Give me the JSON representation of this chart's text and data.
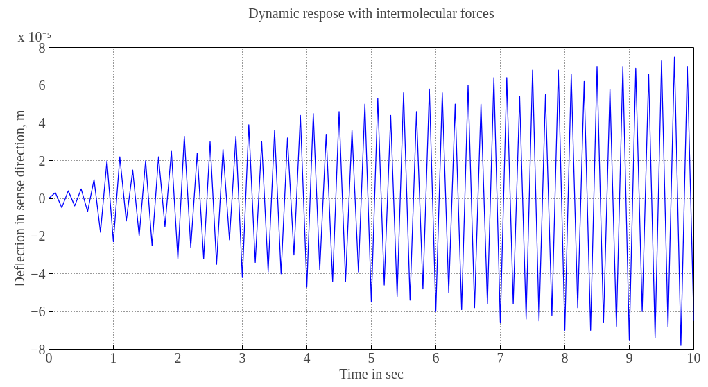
{
  "chart_data": {
    "type": "line",
    "title": "Dynamic respose with intermolecular forces",
    "xlabel": "Time in sec",
    "ylabel": "Deflection in sense direction, m",
    "annotations": [
      "x 10⁻⁵"
    ],
    "x": [
      0,
      0.1,
      0.2,
      0.3,
      0.4,
      0.5,
      0.6,
      0.7,
      0.8,
      0.9,
      1.0,
      1.1,
      1.2,
      1.3,
      1.4,
      1.5,
      1.6,
      1.7,
      1.8,
      1.9,
      2.0,
      2.1,
      2.2,
      2.3,
      2.4,
      2.5,
      2.6,
      2.7,
      2.8,
      2.9,
      3.0,
      3.1,
      3.2,
      3.3,
      3.4,
      3.5,
      3.6,
      3.7,
      3.8,
      3.9,
      4.0,
      4.1,
      4.2,
      4.3,
      4.4,
      4.5,
      4.6,
      4.7,
      4.8,
      4.9,
      5.0,
      5.1,
      5.2,
      5.3,
      5.4,
      5.5,
      5.6,
      5.7,
      5.8,
      5.9,
      6.0,
      6.1,
      6.2,
      6.3,
      6.4,
      6.5,
      6.6,
      6.7,
      6.8,
      6.9,
      7.0,
      7.1,
      7.2,
      7.3,
      7.4,
      7.5,
      7.6,
      7.7,
      7.8,
      7.9,
      8.0,
      8.1,
      8.2,
      8.3,
      8.4,
      8.5,
      8.6,
      8.7,
      8.8,
      8.9,
      9.0,
      9.1,
      9.2,
      9.3,
      9.4,
      9.5,
      9.6,
      9.7,
      9.8,
      9.9,
      10.0
    ],
    "series": [
      {
        "color": "#0000ff",
        "values": [
          0,
          0.3,
          -0.5,
          0.4,
          -0.4,
          0.5,
          -0.7,
          1.0,
          -1.8,
          2.0,
          -2.3,
          2.2,
          -1.2,
          1.5,
          -2.0,
          2.0,
          -2.5,
          2.2,
          -1.5,
          2.5,
          -3.2,
          3.3,
          -2.6,
          2.4,
          -3.2,
          3.0,
          -3.5,
          2.6,
          -2.2,
          3.3,
          -4.2,
          3.9,
          -3.4,
          3.0,
          -3.9,
          3.6,
          -4.0,
          3.2,
          -3.0,
          4.4,
          -4.7,
          4.5,
          -3.8,
          3.4,
          -4.4,
          4.6,
          -4.4,
          3.6,
          -3.9,
          5.0,
          -5.5,
          5.3,
          -4.6,
          4.4,
          -5.2,
          5.6,
          -5.4,
          4.6,
          -4.8,
          5.8,
          -6.0,
          5.6,
          -5.0,
          5.0,
          -5.9,
          6.0,
          -5.8,
          5.0,
          -5.6,
          6.4,
          -6.6,
          6.4,
          -5.6,
          5.4,
          -6.4,
          6.8,
          -6.5,
          5.5,
          -6.2,
          6.8,
          -7.0,
          6.6,
          -5.8,
          6.2,
          -7.0,
          7.0,
          -6.6,
          5.8,
          -6.8,
          7.0,
          -7.5,
          6.9,
          -6.0,
          6.6,
          -7.4,
          7.3,
          -6.8,
          7.5,
          -7.8,
          7.0,
          -6.5
        ]
      }
    ],
    "xlim": [
      0,
      10
    ],
    "xticks": [
      0,
      1,
      2,
      3,
      4,
      5,
      6,
      7,
      8,
      9,
      10
    ],
    "ylim": [
      -8,
      8
    ],
    "yticks": [
      -8,
      -6,
      -4,
      -2,
      0,
      2,
      4,
      6,
      8
    ],
    "grid": true,
    "marker": "none",
    "line_style": "solid"
  }
}
